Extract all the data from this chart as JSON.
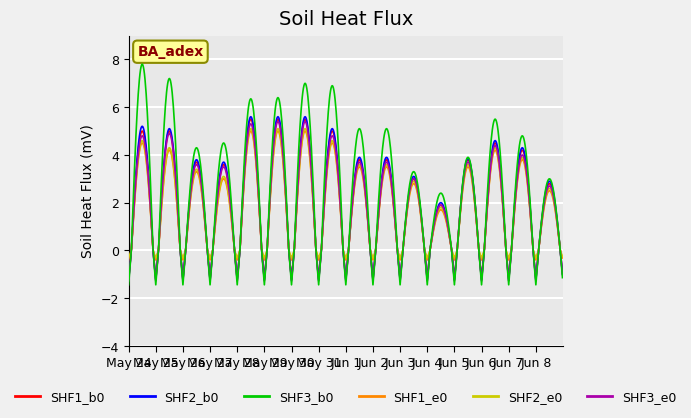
{
  "title": "Soil Heat Flux",
  "ylabel": "Soil Heat Flux (mV)",
  "ylim": [
    -4,
    9
  ],
  "yticks": [
    -4,
    -2,
    0,
    2,
    4,
    6,
    8
  ],
  "series_colors": {
    "SHF1_b0": "#ff0000",
    "SHF2_b0": "#0000ff",
    "SHF3_b0": "#00cc00",
    "SHF1_e0": "#ff8800",
    "SHF2_e0": "#cccc00",
    "SHF3_e0": "#aa00aa"
  },
  "series_order": [
    "SHF1_b0",
    "SHF2_b0",
    "SHF3_b0",
    "SHF1_e0",
    "SHF2_e0",
    "SHF3_e0"
  ],
  "xtick_labels": [
    "May 24",
    "May 25",
    "May 26",
    "May 27",
    "May 28",
    "May 29",
    "May 30",
    "May 31",
    "Jun 1",
    "Jun 2",
    "Jun 3",
    "Jun 4",
    "Jun 5",
    "Jun 6",
    "Jun 7",
    "Jun 8"
  ],
  "annotation_text": "BA_adex",
  "annotation_color": "#8b0000",
  "annotation_bg": "#ffff99",
  "annotation_border": "#8b8b00",
  "background_color": "#e8e8e8",
  "grid_color": "#ffffff",
  "title_fontsize": 14,
  "axis_fontsize": 10,
  "tick_fontsize": 9,
  "legend_fontsize": 9,
  "n_days": 16,
  "shf3b0_peaks": [
    7.8,
    7.2,
    4.3,
    4.5,
    6.35,
    6.4,
    7.0,
    6.9,
    5.1,
    5.1,
    3.3,
    2.4,
    3.9,
    5.5,
    4.8,
    3.0
  ],
  "shf1b0_peaks": [
    5.0,
    5.0,
    3.7,
    3.6,
    5.5,
    5.5,
    5.5,
    5.0,
    3.8,
    3.8,
    3.0,
    1.9,
    3.8,
    4.5,
    4.2,
    2.8
  ],
  "shf2b0_peaks": [
    5.2,
    5.1,
    3.8,
    3.7,
    5.6,
    5.6,
    5.6,
    5.1,
    3.9,
    3.9,
    3.1,
    2.0,
    3.85,
    4.6,
    4.3,
    2.9
  ],
  "shf1e0_peaks": [
    4.5,
    4.2,
    3.3,
    3.0,
    5.0,
    5.0,
    5.0,
    4.5,
    3.5,
    3.5,
    2.8,
    1.7,
    3.5,
    4.2,
    3.8,
    2.5
  ],
  "shf2e0_peaks": [
    4.6,
    4.3,
    3.4,
    3.1,
    5.1,
    5.1,
    5.1,
    4.6,
    3.6,
    3.6,
    2.9,
    1.8,
    3.6,
    4.3,
    3.9,
    2.6
  ],
  "shf3e0_peaks": [
    4.8,
    4.9,
    3.6,
    3.5,
    5.3,
    5.4,
    5.4,
    4.8,
    3.7,
    3.7,
    3.0,
    1.9,
    3.7,
    4.4,
    4.0,
    2.7
  ],
  "shf1b0_neg": -1.5,
  "shf2b0_neg": -1.55,
  "shf3b0_neg": -1.8,
  "shf1e0_neg": -0.5,
  "shf2e0_neg": -0.4,
  "shf3e0_neg": -1.6
}
